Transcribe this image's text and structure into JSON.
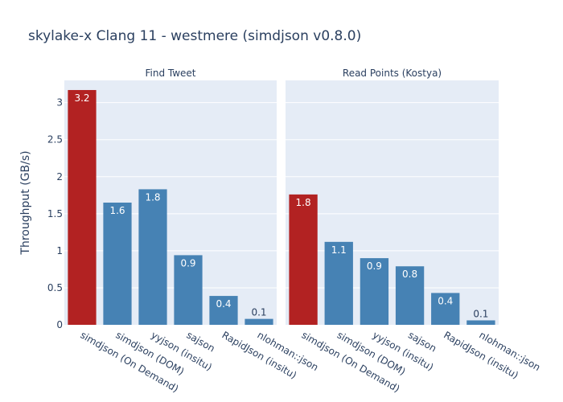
{
  "title": "skylake-x Clang 11 - westmere (simdjson v0.8.0)",
  "colors": {
    "highlight": "#b22222",
    "default": "#4682b4",
    "plot_bg": "#e5ecf6",
    "grid": "#ffffff",
    "text": "#2a3f5f"
  },
  "chart_data": {
    "type": "bar",
    "title": "skylake-x Clang 11 - westmere (simdjson v0.8.0)",
    "ylabel": "Throughput (GB/s)",
    "ylim": [
      0,
      3.3
    ],
    "yticks": [
      0,
      0.5,
      1,
      1.5,
      2,
      2.5,
      3
    ],
    "ytick_labels": [
      "0",
      "0.5",
      "1",
      "1.5",
      "2",
      "2.5",
      "3"
    ],
    "grid": true,
    "categories": [
      "simdjson (On Demand)",
      "simdjson (DOM)",
      "yyjson (insitu)",
      "sajson",
      "RapidJson (insitu)",
      "nlohman::json"
    ],
    "panels": [
      {
        "name": "Find Tweet",
        "values": [
          3.17,
          1.65,
          1.83,
          0.94,
          0.39,
          0.08
        ],
        "labels": [
          "3.2",
          "1.6",
          "1.8",
          "0.9",
          "0.4",
          "0.1"
        ]
      },
      {
        "name": "Read Points (Kostya)",
        "values": [
          1.76,
          1.12,
          0.9,
          0.79,
          0.43,
          0.06
        ],
        "labels": [
          "1.8",
          "1.1",
          "0.9",
          "0.8",
          "0.4",
          "0.1"
        ]
      }
    ]
  }
}
